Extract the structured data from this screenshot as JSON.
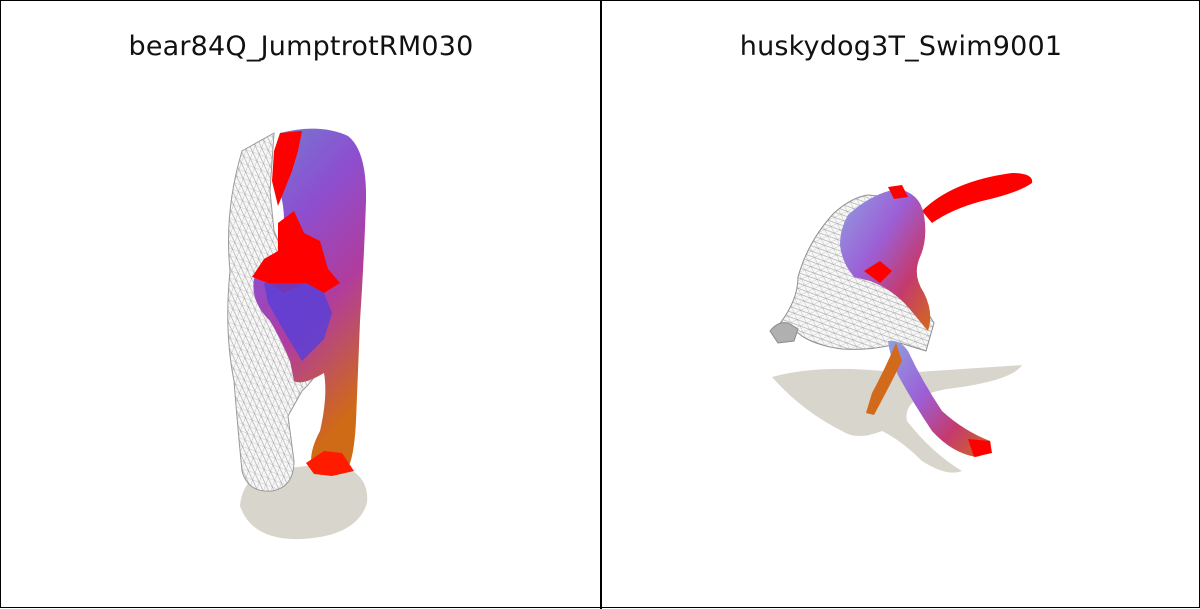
{
  "panels": [
    {
      "title": "bear84Q_JumptrotRM030"
    },
    {
      "title": "huskydog3T_Swim9001"
    }
  ],
  "colors": {
    "shadow": "#d8d5cc",
    "wireframe": "#9a9a9a",
    "highlight_red": "#ff0000",
    "gradient_blue": "#4a5bd6",
    "gradient_purple": "#9a3cc8",
    "gradient_orange": "#d2601a"
  }
}
